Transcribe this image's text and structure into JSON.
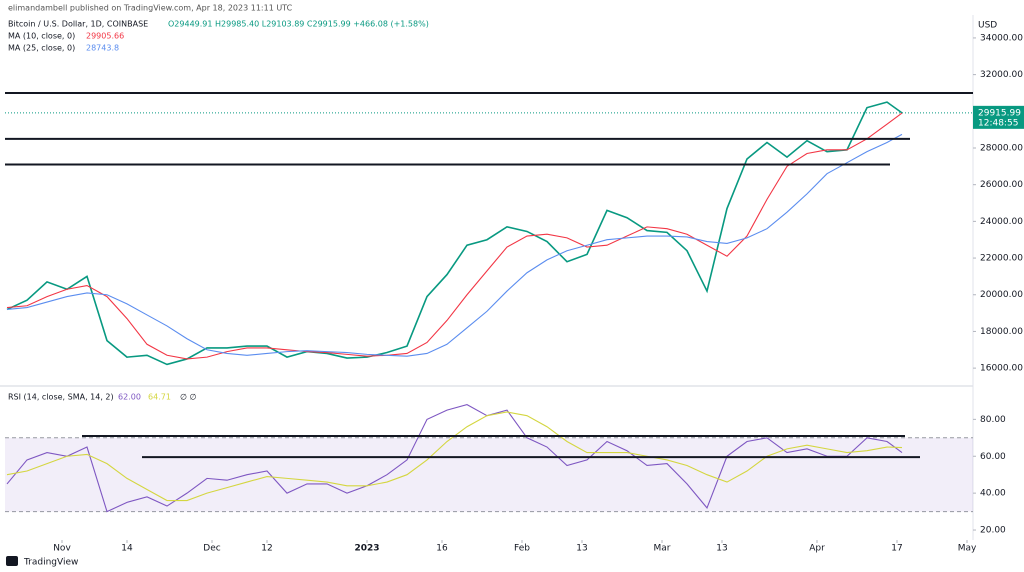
{
  "header": {
    "publisher": "elimandambell published on TradingView.com, Apr 18, 2023 11:11 UTC",
    "currency": "USD",
    "footer": "TradingView"
  },
  "chart_data": [
    {
      "type": "line",
      "title": "Bitcoin / U.S. Dollar, 1D, COINBASE",
      "ohlc": "O29449.91 H29985.40 L29103.89 C29915.99 +466.08 (+1.58%)",
      "xlim": [
        -11.4,
        182.2
      ],
      "ylim": [
        15080,
        35250
      ],
      "yticks": [
        {
          "value": 16000,
          "label": "16000.00"
        },
        {
          "value": 18000,
          "label": "18000.00"
        },
        {
          "value": 20000,
          "label": "20000.00"
        },
        {
          "value": 22000,
          "label": "22000.00"
        },
        {
          "value": 24000,
          "label": "24000.00"
        },
        {
          "value": 26000,
          "label": "26000.00"
        },
        {
          "value": 28000,
          "label": "28000.00"
        },
        {
          "value": 30000,
          "label": "30000.00"
        },
        {
          "value": 32000,
          "label": "32000.00"
        },
        {
          "value": 34000,
          "label": "34000.00"
        }
      ],
      "x": [
        -11,
        -7,
        -3,
        1,
        5,
        9,
        13,
        17,
        21,
        25,
        29,
        33,
        37,
        41,
        45,
        49,
        53,
        57,
        61,
        65,
        69,
        73,
        77,
        81,
        85,
        89,
        93,
        97,
        101,
        105,
        109,
        113,
        117,
        121,
        125,
        129,
        133,
        137,
        141,
        145,
        149,
        153,
        157,
        161,
        165,
        168
      ],
      "series": [
        {
          "color": "#089981",
          "values": [
            19200,
            19700,
            20700,
            20300,
            21000,
            17500,
            16600,
            16700,
            16200,
            16500,
            17100,
            17100,
            17200,
            17200,
            16600,
            16900,
            16800,
            16550,
            16600,
            16850,
            17200,
            19900,
            21100,
            22700,
            23000,
            23700,
            23450,
            22900,
            21800,
            22200,
            24600,
            24200,
            23500,
            23400,
            22400,
            20200,
            24700,
            27400,
            28300,
            27500,
            28400,
            27800,
            27900,
            30200,
            30500,
            29915.99
          ]
        },
        {
          "name": "MA (10, close, 0)",
          "last_value": 29905.66,
          "color": "#f23645",
          "values": [
            19300,
            19400,
            19900,
            20300,
            20500,
            19900,
            18700,
            17300,
            16700,
            16500,
            16600,
            16900,
            17100,
            17100,
            17000,
            16900,
            16850,
            16750,
            16650,
            16700,
            16800,
            17400,
            18600,
            20000,
            21300,
            22600,
            23200,
            23300,
            23100,
            22600,
            22700,
            23200,
            23700,
            23600,
            23300,
            22700,
            22100,
            23200,
            25200,
            27000,
            27700,
            27900,
            27900,
            28500,
            29300,
            29905.66
          ]
        },
        {
          "name": "MA (25, close, 0)",
          "last_value": 28743.8,
          "color": "#5b8def",
          "values": [
            19200,
            19300,
            19600,
            19900,
            20100,
            20000,
            19500,
            18900,
            18300,
            17600,
            17000,
            16800,
            16700,
            16800,
            16900,
            16950,
            16900,
            16850,
            16750,
            16700,
            16650,
            16800,
            17300,
            18200,
            19100,
            20200,
            21200,
            21900,
            22400,
            22700,
            23000,
            23100,
            23200,
            23200,
            23150,
            22900,
            22800,
            23100,
            23600,
            24500,
            25500,
            26600,
            27200,
            27800,
            28300,
            28743.8
          ]
        }
      ],
      "levels": [
        {
          "y": 31000,
          "x": [
            -11.4,
            182.2
          ]
        },
        {
          "y": 28500,
          "x": [
            -11.4,
            169.6
          ]
        },
        {
          "y": 27100,
          "x": [
            -11.4,
            165.6
          ]
        }
      ],
      "last_price": 29915.99,
      "countdown": "12:48:55"
    },
    {
      "type": "line",
      "title": "RSI (14, close, SMA, 14, 2)",
      "legend_values": [
        "62.00",
        "64.71"
      ],
      "extra": "∅ ∅",
      "xlim": [
        -11.4,
        182.2
      ],
      "ylim": [
        14.6,
        97
      ],
      "yticks": [
        {
          "value": 20,
          "label": "20.00"
        },
        {
          "value": 40,
          "label": "40.00"
        },
        {
          "value": 60,
          "label": "60.00"
        },
        {
          "value": 80,
          "label": "80.00"
        }
      ],
      "xticks": [
        {
          "value": 0,
          "label": "Nov"
        },
        {
          "value": 13,
          "label": "14"
        },
        {
          "value": 30,
          "label": "Dec"
        },
        {
          "value": 41,
          "label": "12"
        },
        {
          "value": 61,
          "label": "2023"
        },
        {
          "value": 76,
          "label": "16"
        },
        {
          "value": 92,
          "label": "Feb"
        },
        {
          "value": 104,
          "label": "13"
        },
        {
          "value": 120,
          "label": "Mar"
        },
        {
          "value": 132,
          "label": "13"
        },
        {
          "value": 151,
          "label": "Apr"
        },
        {
          "value": 167,
          "label": "17"
        },
        {
          "value": 181,
          "label": "May"
        }
      ],
      "bands": [
        30,
        70
      ],
      "x": [
        -11,
        -7,
        -3,
        1,
        5,
        9,
        13,
        17,
        21,
        25,
        29,
        33,
        37,
        41,
        45,
        49,
        53,
        57,
        61,
        65,
        69,
        73,
        77,
        81,
        85,
        89,
        93,
        97,
        101,
        105,
        109,
        113,
        117,
        121,
        125,
        129,
        133,
        137,
        141,
        145,
        149,
        153,
        157,
        161,
        165,
        168
      ],
      "series": [
        {
          "color": "#7e57c2",
          "values": [
            45,
            58,
            62,
            60,
            65,
            30,
            35,
            38,
            33,
            40,
            48,
            47,
            50,
            52,
            40,
            45,
            45,
            40,
            44,
            50,
            58,
            80,
            85,
            88,
            82,
            85,
            70,
            65,
            55,
            58,
            68,
            63,
            55,
            56,
            45,
            32,
            60,
            68,
            70,
            62,
            64,
            60,
            60,
            70,
            68,
            62
          ]
        },
        {
          "color": "#d4d640",
          "values": [
            50,
            52,
            56,
            60,
            61,
            56,
            48,
            42,
            36,
            36,
            40,
            43,
            46,
            49,
            48,
            47,
            46,
            44,
            44,
            46,
            50,
            58,
            68,
            76,
            82,
            84,
            82,
            76,
            68,
            62,
            62,
            62,
            60,
            58,
            55,
            50,
            46,
            52,
            60,
            64,
            66,
            64,
            62,
            63,
            65,
            64.71
          ]
        }
      ],
      "levels": [
        {
          "y": 71,
          "x": 4,
          "x2": 168.6
        },
        {
          "y": 59.5,
          "x": 16,
          "x2": 171.6
        }
      ]
    }
  ]
}
